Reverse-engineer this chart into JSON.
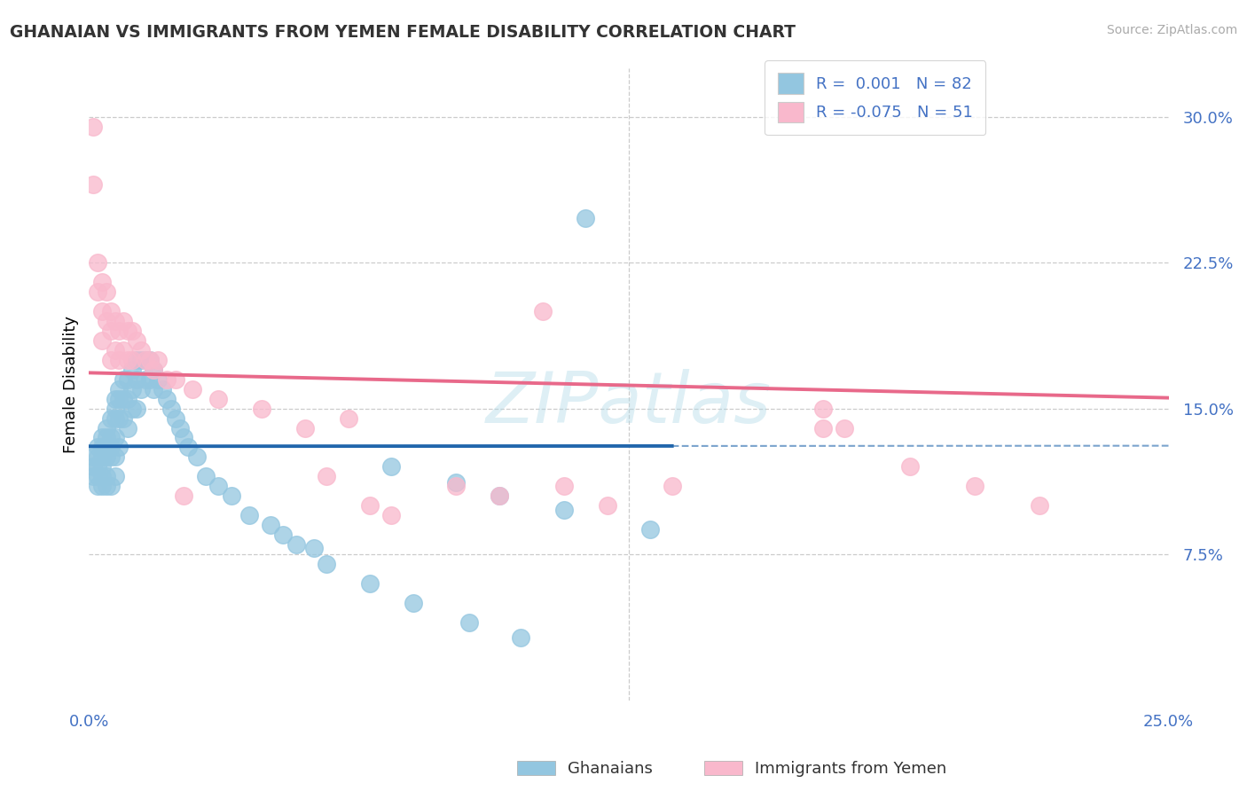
{
  "title": "GHANAIAN VS IMMIGRANTS FROM YEMEN FEMALE DISABILITY CORRELATION CHART",
  "source": "Source: ZipAtlas.com",
  "ylabel": "Female Disability",
  "x_min": 0.0,
  "x_max": 0.25,
  "y_min": 0.0,
  "y_max": 0.325,
  "ytick_vals": [
    0.075,
    0.15,
    0.225,
    0.3
  ],
  "ytick_labels": [
    "7.5%",
    "15.0%",
    "22.5%",
    "30.0%"
  ],
  "xtick_vals": [
    0.0,
    0.125,
    0.25
  ],
  "xtick_labels": [
    "0.0%",
    "",
    "25.0%"
  ],
  "legend_label1": "Ghanaians",
  "legend_label2": "Immigrants from Yemen",
  "R1": "0.001",
  "N1": "82",
  "R2": "-0.075",
  "N2": "51",
  "color_blue": "#93c6e0",
  "color_pink": "#f9b8cc",
  "line_color_blue": "#2166ac",
  "line_color_pink": "#e8698a",
  "watermark": "ZIPatlas",
  "grid_color": "#cccccc",
  "title_color": "#333333",
  "axis_label_color": "#4472c4",
  "source_color": "#aaaaaa",
  "background_color": "#ffffff",
  "blue_x": [
    0.001,
    0.001,
    0.001,
    0.002,
    0.002,
    0.002,
    0.002,
    0.002,
    0.003,
    0.003,
    0.003,
    0.003,
    0.003,
    0.003,
    0.004,
    0.004,
    0.004,
    0.004,
    0.004,
    0.005,
    0.005,
    0.005,
    0.005,
    0.005,
    0.006,
    0.006,
    0.006,
    0.006,
    0.006,
    0.006,
    0.007,
    0.007,
    0.007,
    0.007,
    0.008,
    0.008,
    0.008,
    0.009,
    0.009,
    0.009,
    0.01,
    0.01,
    0.01,
    0.011,
    0.011,
    0.011,
    0.012,
    0.012,
    0.013,
    0.013,
    0.014,
    0.014,
    0.015,
    0.015,
    0.016,
    0.017,
    0.018,
    0.019,
    0.02,
    0.021,
    0.022,
    0.023,
    0.025,
    0.027,
    0.03,
    0.033,
    0.037,
    0.042,
    0.048,
    0.055,
    0.065,
    0.075,
    0.088,
    0.1,
    0.115,
    0.07,
    0.085,
    0.095,
    0.11,
    0.13,
    0.045,
    0.052
  ],
  "blue_y": [
    0.125,
    0.12,
    0.115,
    0.13,
    0.125,
    0.12,
    0.115,
    0.11,
    0.135,
    0.13,
    0.125,
    0.12,
    0.115,
    0.11,
    0.14,
    0.135,
    0.125,
    0.115,
    0.11,
    0.145,
    0.135,
    0.13,
    0.125,
    0.11,
    0.155,
    0.15,
    0.145,
    0.135,
    0.125,
    0.115,
    0.16,
    0.155,
    0.145,
    0.13,
    0.165,
    0.155,
    0.145,
    0.165,
    0.155,
    0.14,
    0.17,
    0.16,
    0.15,
    0.175,
    0.165,
    0.15,
    0.175,
    0.16,
    0.175,
    0.165,
    0.175,
    0.165,
    0.17,
    0.16,
    0.165,
    0.16,
    0.155,
    0.15,
    0.145,
    0.14,
    0.135,
    0.13,
    0.125,
    0.115,
    0.11,
    0.105,
    0.095,
    0.09,
    0.08,
    0.07,
    0.06,
    0.05,
    0.04,
    0.032,
    0.248,
    0.12,
    0.112,
    0.105,
    0.098,
    0.088,
    0.085,
    0.078
  ],
  "pink_x": [
    0.001,
    0.001,
    0.002,
    0.002,
    0.003,
    0.003,
    0.003,
    0.004,
    0.004,
    0.005,
    0.005,
    0.005,
    0.006,
    0.006,
    0.007,
    0.007,
    0.008,
    0.008,
    0.009,
    0.009,
    0.01,
    0.01,
    0.011,
    0.012,
    0.013,
    0.014,
    0.015,
    0.016,
    0.018,
    0.02,
    0.022,
    0.024,
    0.03,
    0.04,
    0.05,
    0.055,
    0.06,
    0.065,
    0.07,
    0.085,
    0.095,
    0.105,
    0.11,
    0.12,
    0.135,
    0.17,
    0.175,
    0.19,
    0.205,
    0.22,
    0.17
  ],
  "pink_y": [
    0.295,
    0.265,
    0.225,
    0.21,
    0.215,
    0.2,
    0.185,
    0.21,
    0.195,
    0.2,
    0.19,
    0.175,
    0.195,
    0.18,
    0.19,
    0.175,
    0.195,
    0.18,
    0.19,
    0.175,
    0.19,
    0.175,
    0.185,
    0.18,
    0.175,
    0.175,
    0.17,
    0.175,
    0.165,
    0.165,
    0.105,
    0.16,
    0.155,
    0.15,
    0.14,
    0.115,
    0.145,
    0.1,
    0.095,
    0.11,
    0.105,
    0.2,
    0.11,
    0.1,
    0.11,
    0.15,
    0.14,
    0.12,
    0.11,
    0.1,
    0.14
  ]
}
